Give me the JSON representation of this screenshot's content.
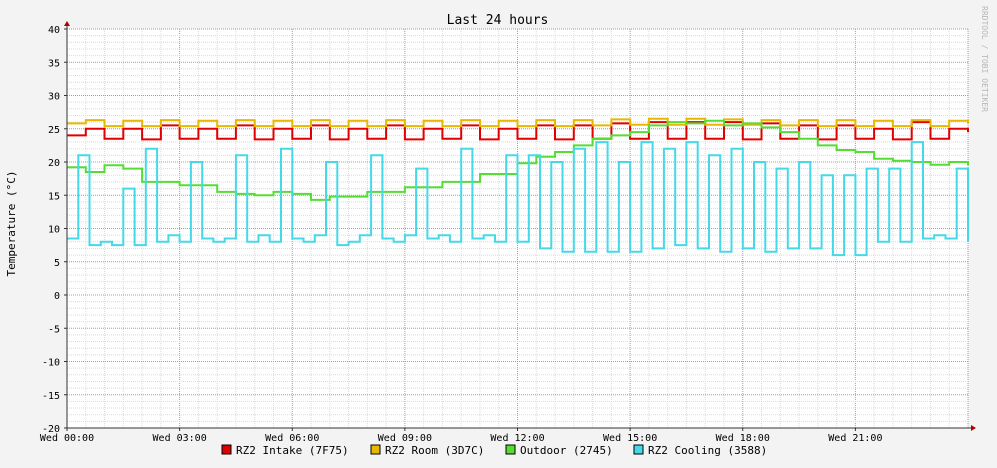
{
  "chart_data": {
    "type": "line",
    "title": "Last 24 hours",
    "ylabel": "Temperature (°C)",
    "xlabel": "",
    "watermark": "RRDTOOL / TOBI OETIKER",
    "ylim": [
      -20,
      40
    ],
    "yticks": [
      40,
      35,
      30,
      25,
      20,
      15,
      10,
      5,
      0,
      -5,
      -10,
      -15,
      -20
    ],
    "xlim": [
      0,
      24
    ],
    "xticks": [
      {
        "hour": 0,
        "label": "Wed 00:00"
      },
      {
        "hour": 3,
        "label": "Wed 03:00"
      },
      {
        "hour": 6,
        "label": "Wed 06:00"
      },
      {
        "hour": 9,
        "label": "Wed 09:00"
      },
      {
        "hour": 12,
        "label": "Wed 12:00"
      },
      {
        "hour": 15,
        "label": "Wed 15:00"
      },
      {
        "hour": 18,
        "label": "Wed 18:00"
      },
      {
        "hour": 21,
        "label": "Wed 21:00"
      }
    ],
    "grid": true,
    "legend_position": "bottom",
    "series": [
      {
        "name": "RZ2 Intake (7F75)",
        "color": "#e00000",
        "x": [
          0,
          0.5,
          1,
          1.5,
          2,
          2.5,
          3,
          3.5,
          4,
          4.5,
          5,
          5.5,
          6,
          6.5,
          7,
          7.5,
          8,
          8.5,
          9,
          9.5,
          10,
          10.5,
          11,
          11.5,
          12,
          12.5,
          13,
          13.5,
          14,
          14.5,
          15,
          15.5,
          16,
          16.5,
          17,
          17.5,
          18,
          18.5,
          19,
          19.5,
          20,
          20.5,
          21,
          21.5,
          22,
          22.5,
          23,
          23.5,
          24
        ],
        "y": [
          24,
          25,
          23.5,
          25,
          23.4,
          25.5,
          23.5,
          25,
          23.5,
          25.5,
          23.4,
          25,
          23.5,
          25.5,
          23.4,
          25,
          23.5,
          25.5,
          23.4,
          25,
          23.5,
          25.5,
          23.4,
          25,
          23.5,
          25.5,
          23.4,
          25.5,
          23.5,
          25.8,
          23.5,
          26,
          23.5,
          26,
          23.5,
          26,
          23.4,
          25.8,
          23.5,
          25.5,
          23.4,
          25.5,
          23.5,
          25,
          23.4,
          26,
          23.5,
          25,
          24.5
        ]
      },
      {
        "name": "RZ2 Room (3D7C)",
        "color": "#e8b800",
        "x": [
          0,
          0.5,
          1,
          1.5,
          2,
          2.5,
          3,
          3.5,
          4,
          4.5,
          5,
          5.5,
          6,
          6.5,
          7,
          7.5,
          8,
          8.5,
          9,
          9.5,
          10,
          10.5,
          11,
          11.5,
          12,
          12.5,
          13,
          13.5,
          14,
          14.5,
          15,
          15.5,
          16,
          16.5,
          17,
          17.5,
          18,
          18.5,
          19,
          19.5,
          20,
          20.5,
          21,
          21.5,
          22,
          22.5,
          23,
          23.5,
          24
        ],
        "y": [
          25.8,
          26.3,
          25.4,
          26.2,
          25.4,
          26.3,
          25.4,
          26.2,
          25.4,
          26.3,
          25.4,
          26.2,
          25.4,
          26.3,
          25.4,
          26.2,
          25.4,
          26.3,
          25.4,
          26.2,
          25.4,
          26.3,
          25.4,
          26.2,
          25.4,
          26.3,
          25.4,
          26.3,
          25.5,
          26.4,
          25.6,
          26.5,
          25.6,
          26.5,
          25.6,
          26.4,
          25.6,
          26.3,
          25.5,
          26.3,
          25.4,
          26.3,
          25.4,
          26.2,
          25.4,
          26.3,
          25.4,
          26.2,
          25.8
        ]
      },
      {
        "name": "Outdoor (2745)",
        "color": "#55dd33",
        "x": [
          0,
          0.5,
          1,
          1.5,
          2,
          3,
          4,
          4.5,
          5,
          5.5,
          6,
          6.5,
          7,
          8,
          9,
          10,
          11,
          12,
          12.5,
          13,
          13.5,
          14,
          14.5,
          15,
          15.5,
          16,
          16.5,
          17,
          17.5,
          18,
          18.5,
          19,
          19.5,
          20,
          20.5,
          21,
          21.5,
          22,
          22.5,
          23,
          23.5,
          24
        ],
        "y": [
          19.2,
          18.5,
          19.5,
          19,
          17,
          16.5,
          15.5,
          15.2,
          15,
          15.5,
          15.2,
          14.3,
          14.8,
          15.5,
          16.2,
          17,
          18.2,
          19.8,
          20.8,
          21.5,
          22.5,
          23.5,
          24,
          24.5,
          25.5,
          26,
          25.8,
          26.2,
          25.5,
          25.8,
          25.2,
          24.5,
          23.5,
          22.5,
          21.8,
          21.5,
          20.5,
          20.2,
          20,
          19.6,
          20,
          19.5
        ]
      },
      {
        "name": "RZ2 Cooling (3588)",
        "color": "#44d8e8",
        "x": [
          0,
          0.3,
          0.6,
          0.9,
          1.2,
          1.5,
          1.8,
          2.1,
          2.4,
          2.7,
          3,
          3.3,
          3.6,
          3.9,
          4.2,
          4.5,
          4.8,
          5.1,
          5.4,
          5.7,
          6,
          6.3,
          6.6,
          6.9,
          7.2,
          7.5,
          7.8,
          8.1,
          8.4,
          8.7,
          9,
          9.3,
          9.6,
          9.9,
          10.2,
          10.5,
          10.8,
          11.1,
          11.4,
          11.7,
          12,
          12.3,
          12.6,
          12.9,
          13.2,
          13.5,
          13.8,
          14.1,
          14.4,
          14.7,
          15,
          15.3,
          15.6,
          15.9,
          16.2,
          16.5,
          16.8,
          17.1,
          17.4,
          17.7,
          18,
          18.3,
          18.6,
          18.9,
          19.2,
          19.5,
          19.8,
          20.1,
          20.4,
          20.7,
          21,
          21.3,
          21.6,
          21.9,
          22.2,
          22.5,
          22.8,
          23.1,
          23.4,
          23.7,
          24
        ],
        "y": [
          8.5,
          21,
          7.5,
          8,
          7.5,
          16,
          7.5,
          22,
          8,
          9,
          8,
          20,
          8.5,
          8,
          8.5,
          21,
          8,
          9,
          8,
          22,
          8.5,
          8,
          9,
          20,
          7.5,
          8,
          9,
          21,
          8.5,
          8,
          9,
          19,
          8.5,
          9,
          8,
          22,
          8.5,
          9,
          8,
          21,
          8,
          21,
          7,
          20,
          6.5,
          22,
          6.5,
          23,
          6.5,
          20,
          6.5,
          23,
          7,
          22,
          7.5,
          23,
          7,
          21,
          6.5,
          22,
          7,
          20,
          6.5,
          19,
          7,
          20,
          7,
          18,
          6,
          18,
          6,
          19,
          8,
          19,
          8,
          23,
          8.5,
          9,
          8.5,
          19,
          8
        ]
      }
    ]
  }
}
